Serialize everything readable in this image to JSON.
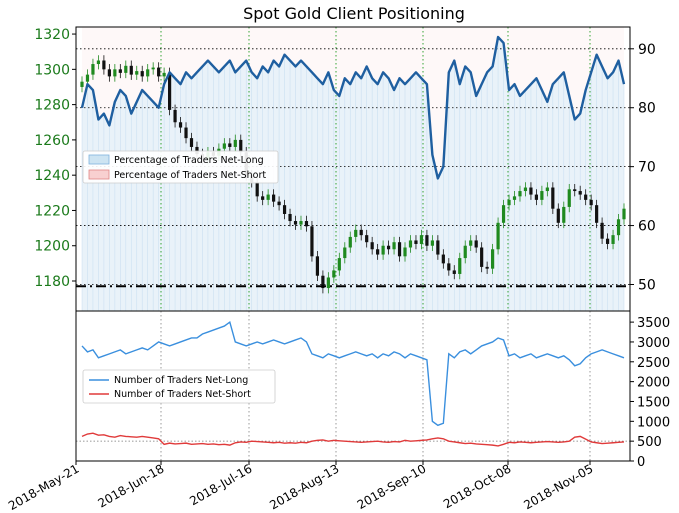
{
  "chart_data": [
    {
      "type": "candlestick-line",
      "title": "Spot Gold Client Positioning",
      "left_axis": {
        "ylim": [
          1163,
          1324
        ],
        "ticks": [
          1320,
          1300,
          1280,
          1260,
          1240,
          1220,
          1200,
          1180
        ]
      },
      "right_axis": {
        "ylim": [
          45.5,
          93.7
        ],
        "ticks": [
          90,
          80,
          70,
          60,
          50
        ]
      },
      "legend": {
        "placement": "left",
        "entries": [
          {
            "label": "Percentage of Traders Net-Long",
            "color": "#a6cde8"
          },
          {
            "label": "Percentage of Traders Net-Short",
            "color": "#f4a9a9"
          }
        ]
      },
      "reference_line": {
        "value": 1177,
        "axis": "left"
      },
      "x_ticks": [
        "2018-May-21",
        "2018-Jun-18",
        "2018-Jul-16",
        "2018-Aug-13",
        "2018-Sep-10",
        "2018-Oct-08",
        "2018-Nov-05"
      ],
      "price_close": [
        1293,
        1297,
        1303,
        1305,
        1300,
        1296,
        1300,
        1298,
        1302,
        1297,
        1299,
        1296,
        1300,
        1301,
        1296,
        1298,
        1277,
        1270,
        1267,
        1261,
        1256,
        1252,
        1249,
        1253,
        1251,
        1255,
        1258,
        1256,
        1260,
        1253,
        1240,
        1236,
        1228,
        1226,
        1229,
        1225,
        1223,
        1218,
        1214,
        1212,
        1214,
        1211,
        1194,
        1183,
        1176,
        1182,
        1186,
        1193,
        1199,
        1205,
        1209,
        1206,
        1202,
        1198,
        1195,
        1200,
        1198,
        1202,
        1194,
        1199,
        1203,
        1201,
        1206,
        1200,
        1203,
        1195,
        1190,
        1186,
        1184,
        1193,
        1200,
        1203,
        1199,
        1188,
        1187,
        1198,
        1213,
        1223,
        1226,
        1228,
        1231,
        1233,
        1229,
        1226,
        1231,
        1233,
        1221,
        1213,
        1222,
        1232,
        1231,
        1229,
        1226,
        1223,
        1213,
        1204,
        1201,
        1206,
        1215,
        1221
      ],
      "pct_net_long": [
        80,
        84,
        83,
        78,
        79,
        77,
        81,
        83,
        82,
        79,
        81,
        83,
        82,
        81,
        80,
        84,
        86,
        85,
        84,
        86,
        85,
        86,
        87,
        88,
        87,
        86,
        87,
        88,
        86,
        87,
        88,
        86,
        85,
        87,
        86,
        88,
        87,
        89,
        88,
        87,
        88,
        87,
        86,
        85,
        84,
        86,
        83,
        82,
        85,
        84,
        86,
        85,
        87,
        85,
        84,
        86,
        85,
        83,
        85,
        84,
        85,
        86,
        85,
        84,
        72,
        68,
        70,
        86,
        88,
        84,
        87,
        86,
        82,
        84,
        86,
        87,
        92,
        91,
        83,
        84,
        82,
        83,
        84,
        85,
        83,
        81,
        84,
        85,
        86,
        82,
        78,
        79,
        83,
        86,
        89,
        87,
        85,
        86,
        88,
        84
      ]
    },
    {
      "type": "line",
      "yticks": [
        3500,
        3000,
        2500,
        2000,
        1500,
        1000,
        500,
        0
      ],
      "ylim": [
        0,
        3780
      ],
      "legend": {
        "placement": "left",
        "entries": [
          {
            "label": "Number of Traders Net-Long",
            "color": "#3a8fde"
          },
          {
            "label": "Number of Traders Net-Short",
            "color": "#e03a3a"
          }
        ]
      },
      "reference_line": {
        "value": 500,
        "style": "dotted"
      },
      "net_long_count": [
        2900,
        2750,
        2800,
        2600,
        2650,
        2700,
        2750,
        2800,
        2700,
        2750,
        2800,
        2850,
        2800,
        2900,
        3000,
        2950,
        2900,
        2950,
        3000,
        3050,
        3100,
        3100,
        3200,
        3250,
        3300,
        3350,
        3400,
        3500,
        3000,
        2950,
        2900,
        2950,
        3000,
        2950,
        3000,
        3050,
        3000,
        2950,
        3000,
        3050,
        3100,
        3000,
        2700,
        2650,
        2600,
        2700,
        2650,
        2600,
        2650,
        2700,
        2750,
        2700,
        2650,
        2700,
        2600,
        2700,
        2650,
        2750,
        2700,
        2600,
        2700,
        2650,
        2600,
        2550,
        1000,
        900,
        950,
        2700,
        2600,
        2750,
        2800,
        2700,
        2800,
        2900,
        2950,
        3000,
        3100,
        3050,
        2650,
        2700,
        2600,
        2650,
        2700,
        2600,
        2650,
        2700,
        2650,
        2600,
        2650,
        2550,
        2400,
        2450,
        2600,
        2700,
        2750,
        2800,
        2750,
        2700,
        2650,
        2600
      ],
      "net_short_count": [
        620,
        680,
        700,
        650,
        660,
        620,
        600,
        640,
        620,
        610,
        600,
        620,
        600,
        580,
        560,
        420,
        450,
        430,
        440,
        450,
        420,
        430,
        440,
        420,
        430,
        410,
        420,
        400,
        460,
        480,
        470,
        500,
        490,
        480,
        470,
        460,
        470,
        450,
        460,
        450,
        470,
        460,
        500,
        520,
        530,
        500,
        520,
        510,
        500,
        490,
        480,
        470,
        480,
        490,
        500,
        480,
        470,
        490,
        480,
        520,
        500,
        510,
        520,
        530,
        560,
        580,
        560,
        500,
        480,
        460,
        440,
        450,
        430,
        420,
        410,
        400,
        380,
        420,
        470,
        460,
        480,
        470,
        460,
        470,
        480,
        490,
        480,
        470,
        480,
        500,
        600,
        620,
        550,
        480,
        460,
        440,
        450,
        460,
        470,
        480
      ]
    }
  ]
}
